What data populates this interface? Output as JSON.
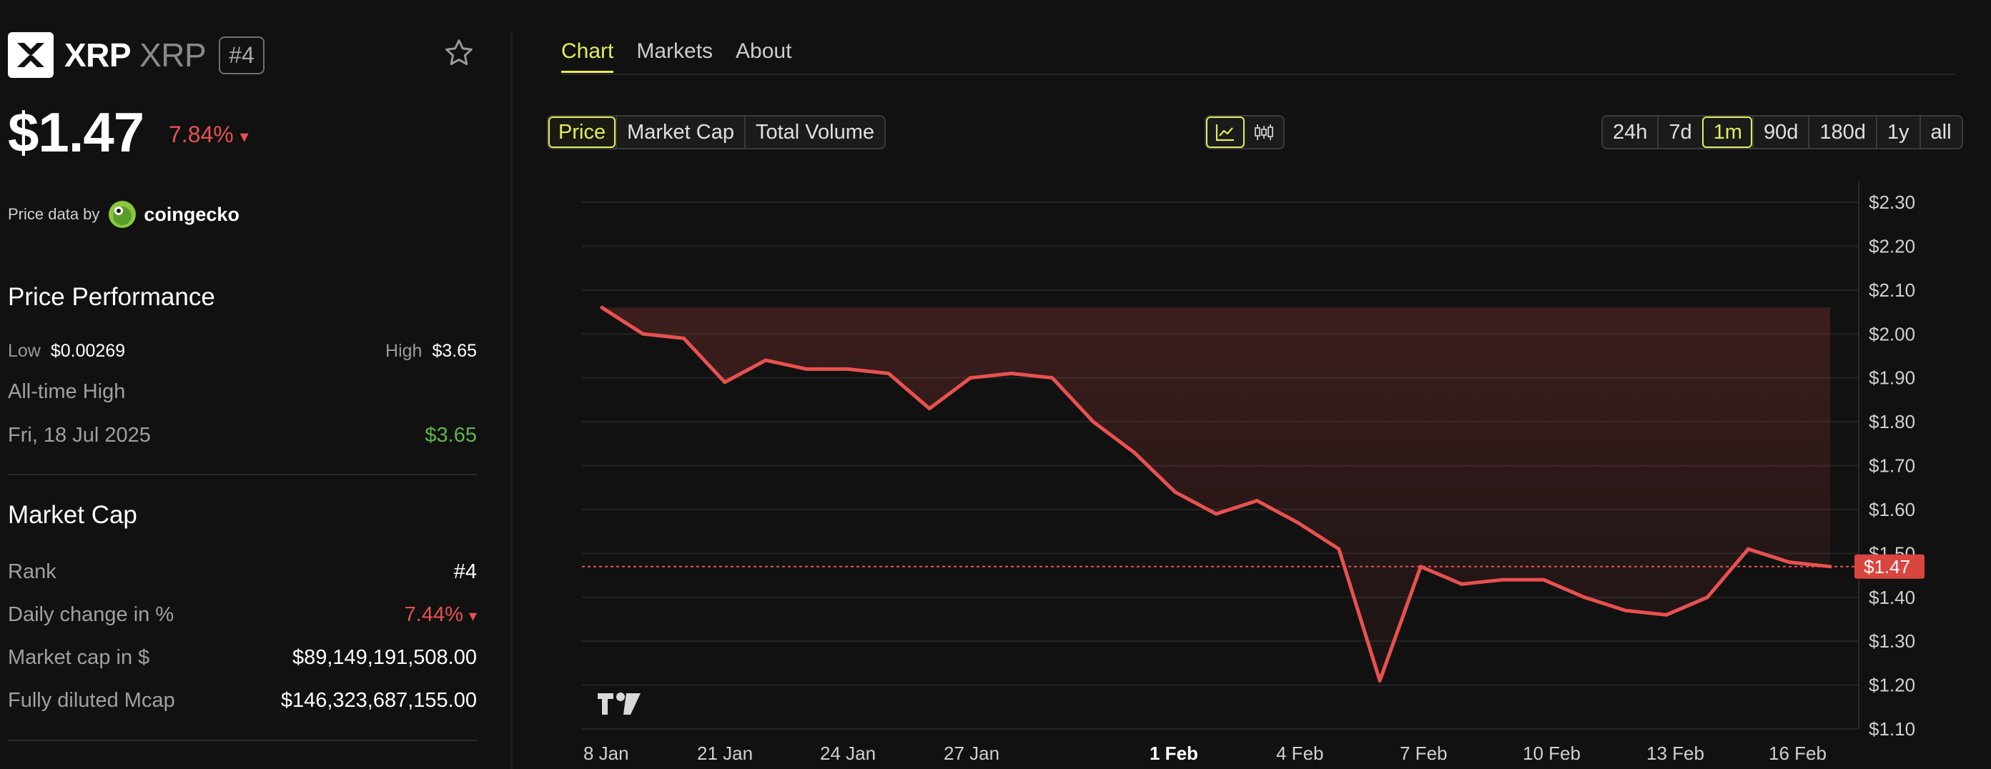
{
  "coin": {
    "name": "XRP",
    "symbol": "XRP",
    "rank_badge": "#4",
    "price": "$1.47",
    "change": "7.84%",
    "change_arrow": "▾",
    "logo_icon": "xrp-logo-icon",
    "favorite_icon": "star-outline-icon"
  },
  "price_source": {
    "label": "Price data by",
    "provider": "coingecko"
  },
  "performance": {
    "title": "Price Performance",
    "low_label": "Low",
    "low_value": "$0.00269",
    "high_label": "High",
    "high_value": "$3.65",
    "ath_label": "All-time High",
    "ath_date": "Fri, 18 Jul 2025",
    "ath_value": "$3.65"
  },
  "market_cap": {
    "title": "Market Cap",
    "rows": [
      {
        "label": "Rank",
        "value": "#4"
      },
      {
        "label": "Daily change in %",
        "value": "7.44%",
        "arrow": "▾"
      },
      {
        "label": "Market cap in $",
        "value": "$89,149,191,508.00"
      },
      {
        "label": "Fully diluted Mcap",
        "value": "$146,323,687,155.00"
      }
    ]
  },
  "tabs": [
    {
      "label": "Chart",
      "active": true
    },
    {
      "label": "Markets",
      "active": false
    },
    {
      "label": "About",
      "active": false
    }
  ],
  "metric_buttons": [
    "Price",
    "Market Cap",
    "Total Volume"
  ],
  "chart_type_icons": [
    "line-chart-icon",
    "candlestick-chart-icon"
  ],
  "range_buttons": [
    "24h",
    "7d",
    "1m",
    "90d",
    "180d",
    "1y",
    "all"
  ],
  "colors": {
    "accent": "#e4ec5c",
    "negative": "#e8514f",
    "positive": "#5fb548",
    "background": "#111111"
  },
  "chart_data": {
    "type": "area",
    "current_price_label": "$1.47",
    "current_price": 1.47,
    "y_range": [
      1.1,
      2.3
    ],
    "y_ticks": [
      "$2.30",
      "$2.20",
      "$2.10",
      "$2.00",
      "$1.90",
      "$1.80",
      "$1.70",
      "$1.60",
      "$1.50",
      "$1.40",
      "$1.30",
      "$1.20",
      "$1.10"
    ],
    "x_ticks": [
      "8 Jan",
      "21 Jan",
      "24 Jan",
      "27 Jan",
      "1 Feb",
      "4 Feb",
      "7 Feb",
      "10 Feb",
      "13 Feb",
      "16 Feb"
    ],
    "x_tick_bold": "1 Feb",
    "grid": true,
    "watermark": "TradingView",
    "values": [
      2.06,
      2.0,
      1.99,
      1.89,
      1.94,
      1.92,
      1.92,
      1.91,
      1.83,
      1.9,
      1.91,
      1.9,
      1.8,
      1.73,
      1.64,
      1.59,
      1.62,
      1.57,
      1.51,
      1.21,
      1.47,
      1.43,
      1.44,
      1.44,
      1.4,
      1.37,
      1.36,
      1.4,
      1.51,
      1.48,
      1.47
    ]
  }
}
